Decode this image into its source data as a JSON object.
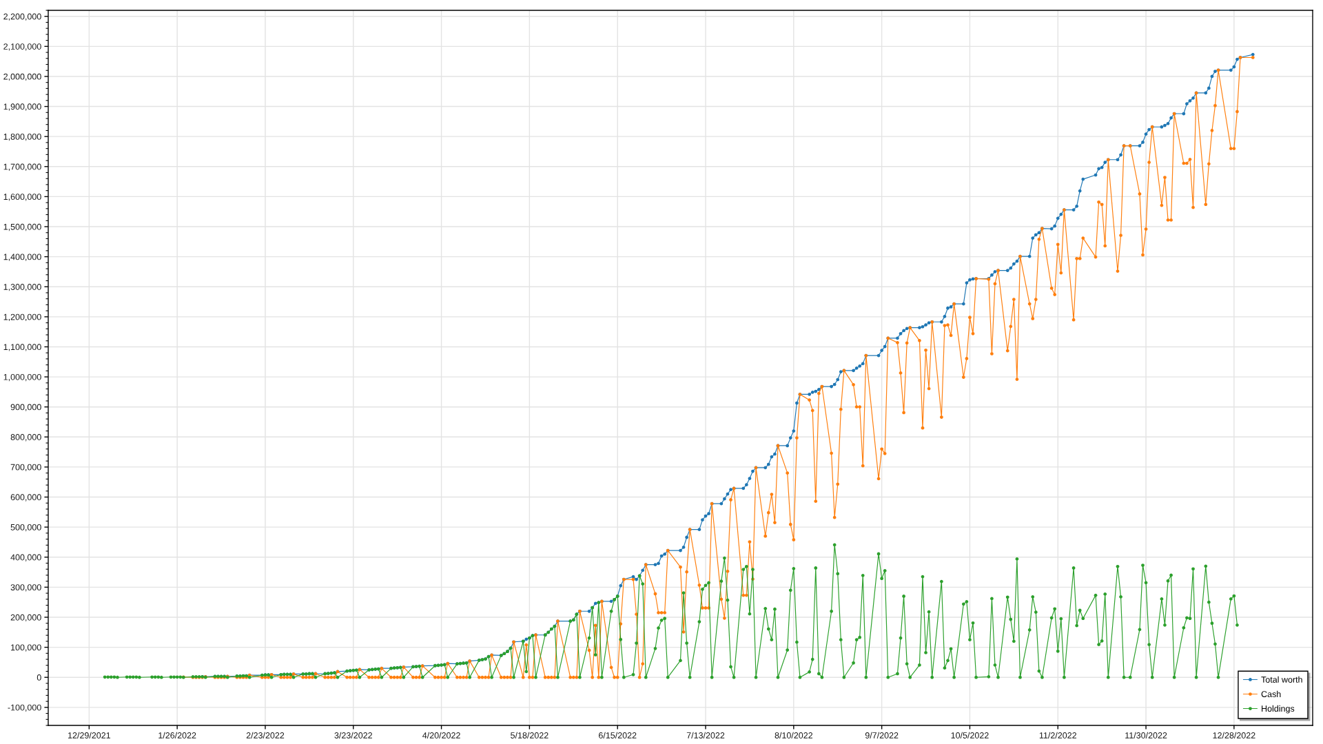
{
  "chart_data": {
    "type": "line",
    "marker": "circle",
    "line_style": "solid",
    "grid": true,
    "legend": "bottom right",
    "xlim": [
      "2021-12-16",
      "2023-01-22"
    ],
    "ylim": [
      -160000,
      2220000
    ],
    "xticks": [
      {
        "value": "2021-12-29",
        "label": "12/29/2021"
      },
      {
        "value": "2022-01-26",
        "label": "1/26/2022"
      },
      {
        "value": "2022-02-23",
        "label": "2/23/2022"
      },
      {
        "value": "2022-03-23",
        "label": "3/23/2022"
      },
      {
        "value": "2022-04-20",
        "label": "4/20/2022"
      },
      {
        "value": "2022-05-18",
        "label": "5/18/2022"
      },
      {
        "value": "2022-06-15",
        "label": "6/15/2022"
      },
      {
        "value": "2022-07-13",
        "label": "7/13/2022"
      },
      {
        "value": "2022-08-10",
        "label": "8/10/2022"
      },
      {
        "value": "2022-09-07",
        "label": "9/7/2022"
      },
      {
        "value": "2022-10-05",
        "label": "10/5/2022"
      },
      {
        "value": "2022-11-02",
        "label": "11/2/2022"
      },
      {
        "value": "2022-11-30",
        "label": "11/30/2022"
      },
      {
        "value": "2022-12-28",
        "label": "12/28/2022"
      }
    ],
    "yticks": [
      {
        "value": -100000,
        "label": "-100,000"
      },
      0,
      {
        "value": 100000,
        "label": "100,000"
      },
      {
        "value": 200000,
        "label": "200,000"
      },
      {
        "value": 300000,
        "label": "300,000"
      },
      {
        "value": 400000,
        "label": "400,000"
      },
      {
        "value": 500000,
        "label": "500,000"
      },
      {
        "value": 600000,
        "label": "600,000"
      },
      {
        "value": 700000,
        "label": "700,000"
      },
      {
        "value": 800000,
        "label": "800,000"
      },
      {
        "value": 900000,
        "label": "900,000"
      },
      {
        "value": 1000000,
        "label": "1,000,000"
      },
      {
        "value": 1100000,
        "label": "1,100,000"
      },
      {
        "value": 1200000,
        "label": "1,200,000"
      },
      {
        "value": 1300000,
        "label": "1,300,000"
      },
      {
        "value": 1400000,
        "label": "1,400,000"
      },
      {
        "value": 1500000,
        "label": "1,500,000"
      },
      {
        "value": 1600000,
        "label": "1,600,000"
      },
      {
        "value": 1700000,
        "label": "1,700,000"
      },
      {
        "value": 1800000,
        "label": "1,800,000"
      },
      {
        "value": 1900000,
        "label": "1,900,000"
      },
      {
        "value": 2000000,
        "label": "2,000,000"
      },
      {
        "value": 2100000,
        "label": "2,100,000"
      },
      {
        "value": 2200000,
        "label": "2,200,000"
      }
    ],
    "x": [
      "2022-01-03",
      "2022-01-04",
      "2022-01-05",
      "2022-01-06",
      "2022-01-07",
      "2022-01-10",
      "2022-01-11",
      "2022-01-12",
      "2022-01-13",
      "2022-01-14",
      "2022-01-18",
      "2022-01-19",
      "2022-01-20",
      "2022-01-21",
      "2022-01-24",
      "2022-01-25",
      "2022-01-26",
      "2022-01-27",
      "2022-01-28",
      "2022-01-31",
      "2022-02-01",
      "2022-02-02",
      "2022-02-03",
      "2022-02-04",
      "2022-02-07",
      "2022-02-08",
      "2022-02-09",
      "2022-02-10",
      "2022-02-11",
      "2022-02-14",
      "2022-02-15",
      "2022-02-16",
      "2022-02-17",
      "2022-02-18",
      "2022-02-22",
      "2022-02-23",
      "2022-02-24",
      "2022-02-25",
      "2022-02-28",
      "2022-03-01",
      "2022-03-02",
      "2022-03-03",
      "2022-03-04",
      "2022-03-07",
      "2022-03-08",
      "2022-03-09",
      "2022-03-10",
      "2022-03-11",
      "2022-03-14",
      "2022-03-15",
      "2022-03-16",
      "2022-03-17",
      "2022-03-18",
      "2022-03-21",
      "2022-03-22",
      "2022-03-23",
      "2022-03-24",
      "2022-03-25",
      "2022-03-28",
      "2022-03-29",
      "2022-03-30",
      "2022-03-31",
      "2022-04-01",
      "2022-04-04",
      "2022-04-05",
      "2022-04-06",
      "2022-04-07",
      "2022-04-08",
      "2022-04-11",
      "2022-04-12",
      "2022-04-13",
      "2022-04-14",
      "2022-04-18",
      "2022-04-19",
      "2022-04-20",
      "2022-04-21",
      "2022-04-22",
      "2022-04-25",
      "2022-04-26",
      "2022-04-27",
      "2022-04-28",
      "2022-04-29",
      "2022-05-02",
      "2022-05-03",
      "2022-05-04",
      "2022-05-05",
      "2022-05-06",
      "2022-05-09",
      "2022-05-10",
      "2022-05-11",
      "2022-05-12",
      "2022-05-13",
      "2022-05-16",
      "2022-05-17",
      "2022-05-18",
      "2022-05-19",
      "2022-05-20",
      "2022-05-23",
      "2022-05-24",
      "2022-05-25",
      "2022-05-26",
      "2022-05-27",
      "2022-05-31",
      "2022-06-01",
      "2022-06-02",
      "2022-06-03",
      "2022-06-06",
      "2022-06-07",
      "2022-06-08",
      "2022-06-09",
      "2022-06-10",
      "2022-06-13",
      "2022-06-14",
      "2022-06-15",
      "2022-06-16",
      "2022-06-17",
      "2022-06-20",
      "2022-06-21",
      "2022-06-22",
      "2022-06-23",
      "2022-06-24",
      "2022-06-27",
      "2022-06-28",
      "2022-06-29",
      "2022-06-30",
      "2022-07-01",
      "2022-07-05",
      "2022-07-06",
      "2022-07-07",
      "2022-07-08",
      "2022-07-11",
      "2022-07-12",
      "2022-07-13",
      "2022-07-14",
      "2022-07-15",
      "2022-07-18",
      "2022-07-19",
      "2022-07-20",
      "2022-07-21",
      "2022-07-22",
      "2022-07-25",
      "2022-07-26",
      "2022-07-27",
      "2022-07-28",
      "2022-07-29",
      "2022-08-01",
      "2022-08-02",
      "2022-08-03",
      "2022-08-04",
      "2022-08-05",
      "2022-08-08",
      "2022-08-09",
      "2022-08-10",
      "2022-08-11",
      "2022-08-12",
      "2022-08-15",
      "2022-08-16",
      "2022-08-17",
      "2022-08-18",
      "2022-08-19",
      "2022-08-22",
      "2022-08-23",
      "2022-08-24",
      "2022-08-25",
      "2022-08-26",
      "2022-08-29",
      "2022-08-30",
      "2022-08-31",
      "2022-09-01",
      "2022-09-02",
      "2022-09-06",
      "2022-09-07",
      "2022-09-08",
      "2022-09-09",
      "2022-09-12",
      "2022-09-13",
      "2022-09-14",
      "2022-09-15",
      "2022-09-16",
      "2022-09-19",
      "2022-09-20",
      "2022-09-21",
      "2022-09-22",
      "2022-09-23",
      "2022-09-26",
      "2022-09-27",
      "2022-09-28",
      "2022-09-29",
      "2022-09-30",
      "2022-10-03",
      "2022-10-04",
      "2022-10-05",
      "2022-10-06",
      "2022-10-07",
      "2022-10-11",
      "2022-10-12",
      "2022-10-13",
      "2022-10-14",
      "2022-10-17",
      "2022-10-18",
      "2022-10-19",
      "2022-10-20",
      "2022-10-21",
      "2022-10-24",
      "2022-10-25",
      "2022-10-26",
      "2022-10-27",
      "2022-10-28",
      "2022-10-31",
      "2022-11-01",
      "2022-11-02",
      "2022-11-03",
      "2022-11-04",
      "2022-11-07",
      "2022-11-08",
      "2022-11-09",
      "2022-11-10",
      "2022-11-14",
      "2022-11-15",
      "2022-11-16",
      "2022-11-17",
      "2022-11-18",
      "2022-11-21",
      "2022-11-22",
      "2022-11-23",
      "2022-11-25",
      "2022-11-28",
      "2022-11-29",
      "2022-11-30",
      "2022-12-01",
      "2022-12-02",
      "2022-12-05",
      "2022-12-06",
      "2022-12-07",
      "2022-12-08",
      "2022-12-09",
      "2022-12-12",
      "2022-12-13",
      "2022-12-14",
      "2022-12-15",
      "2022-12-16",
      "2022-12-19",
      "2022-12-20",
      "2022-12-21",
      "2022-12-22",
      "2022-12-23",
      "2022-12-27",
      "2022-12-28",
      "2022-12-29",
      "2022-12-30",
      "2023-01-03"
    ],
    "series": [
      {
        "name": "Total worth",
        "color": "#1f77b4",
        "values": [
          null,
          null,
          null,
          null,
          null,
          null,
          null,
          null,
          null,
          null,
          null,
          null,
          null,
          null,
          null,
          null,
          null,
          null,
          null,
          null,
          null,
          null,
          2000,
          2000,
          3000,
          3000,
          3000,
          3000,
          3000,
          4000,
          4000,
          5000,
          5000,
          7000,
          7000,
          8000,
          8000,
          9000,
          9000,
          10000,
          10000,
          10000,
          11000,
          11000,
          11000,
          12000,
          12000,
          12000,
          12000,
          13000,
          14000,
          15000,
          19000,
          21000,
          22000,
          23000,
          24000,
          26000,
          25000,
          26000,
          27000,
          28000,
          30000,
          30000,
          31000,
          32000,
          33000,
          34000,
          35000,
          36000,
          37000,
          38000,
          39000,
          40000,
          41000,
          42000,
          46000,
          45000,
          46000,
          47000,
          48000,
          54000,
          57000,
          59000,
          61000,
          69000,
          74000,
          73000,
          79000,
          86000,
          97000,
          118000,
          120000,
          127000,
          131000,
          139000,
          141000,
          141000,
          150000,
          161000,
          170000,
          187000,
          187000,
          191000,
          210000,
          220000,
          220000,
          232000,
          246000,
          249000,
          253000,
          253000,
          259000,
          270000,
          305000,
          326000,
          335000,
          326000,
          338000,
          356000,
          375000,
          375000,
          379000,
          404000,
          410000,
          422000,
          422000,
          433000,
          466000,
          492000,
          492000,
          524000,
          537000,
          545000,
          578000,
          578000,
          594000,
          610000,
          625000,
          629000,
          629000,
          641000,
          662000,
          686000,
          698000,
          698000,
          709000,
          734000,
          743000,
          771000,
          771000,
          797000,
          820000,
          913000,
          942000,
          942000,
          949000,
          952000,
          958000,
          968000,
          968000,
          975000,
          991000,
          1017000,
          1021000,
          1021000,
          1029000,
          1036000,
          1044000,
          1071000,
          1071000,
          1088000,
          1101000,
          1129000,
          1129000,
          1144000,
          1154000,
          1161000,
          1164000,
          1164000,
          1167000,
          1173000,
          1180000,
          1183000,
          1183000,
          1201000,
          1229000,
          1233000,
          1243000,
          1243000,
          1313000,
          1323000,
          1326000,
          1327000,
          1327000,
          1339000,
          1350000,
          1354000,
          1354000,
          1362000,
          1376000,
          1385000,
          1401000,
          1401000,
          1462000,
          1473000,
          1480000,
          1494000,
          1493000,
          1502000,
          1528000,
          1541000,
          1556000,
          1556000,
          1568000,
          1619000,
          1658000,
          1672000,
          1693000,
          1697000,
          1714000,
          1723000,
          1723000,
          1739000,
          1769000,
          1769000,
          1769000,
          1781000,
          1808000,
          1823000,
          1832000,
          1832000,
          1837000,
          1843000,
          1862000,
          1876000,
          1876000,
          1909000,
          1919000,
          1928000,
          1945000,
          1945000,
          1961000,
          2000000,
          2017000,
          2021000,
          2021000,
          2032000,
          2057000,
          2063000,
          2073000
        ]
      },
      {
        "name": "Cash",
        "color": "#ff7f0e",
        "values": [
          null,
          null,
          null,
          null,
          null,
          null,
          null,
          null,
          null,
          null,
          null,
          null,
          null,
          null,
          null,
          null,
          null,
          null,
          1000,
          0,
          0,
          0,
          0,
          2000,
          0,
          0,
          0,
          0,
          3000,
          0,
          0,
          0,
          0,
          7000,
          0,
          0,
          0,
          9000,
          0,
          0,
          0,
          0,
          11000,
          0,
          0,
          0,
          0,
          12000,
          0,
          0,
          0,
          0,
          19000,
          0,
          0,
          0,
          0,
          26000,
          0,
          0,
          0,
          0,
          30000,
          0,
          0,
          0,
          0,
          34000,
          0,
          0,
          0,
          38000,
          0,
          0,
          0,
          0,
          46000,
          0,
          0,
          0,
          0,
          54000,
          0,
          0,
          0,
          0,
          74000,
          0,
          0,
          0,
          0,
          118000,
          0,
          108000,
          0,
          0,
          141000,
          0,
          0,
          0,
          0,
          187000,
          0,
          0,
          0,
          220000,
          90000,
          0,
          173000,
          0,
          253000,
          33000,
          0,
          0,
          178000,
          326000,
          326000,
          210000,
          0,
          45000,
          375000,
          278000,
          215000,
          215000,
          215000,
          422000,
          367000,
          151000,
          351000,
          492000,
          307000,
          231000,
          231000,
          231000,
          578000,
          260000,
          197000,
          353000,
          591000,
          629000,
          273000,
          273000,
          451000,
          327000,
          698000,
          470000,
          548000,
          609000,
          515000,
          771000,
          680000,
          509000,
          458000,
          797000,
          942000,
          923000,
          888000,
          586000,
          945000,
          968000,
          746000,
          532000,
          643000,
          892000,
          1021000,
          974000,
          900000,
          900000,
          704000,
          1071000,
          661000,
          760000,
          745000,
          1129000,
          1114000,
          1013000,
          881000,
          1113000,
          1164000,
          1121000,
          830000,
          1089000,
          961000,
          1183000,
          866000,
          1171000,
          1173000,
          1138000,
          1243000,
          999000,
          1061000,
          1198000,
          1144000,
          1327000,
          1325000,
          1077000,
          1310000,
          1354000,
          1087000,
          1168000,
          1258000,
          992000,
          1401000,
          1243000,
          1194000,
          1258000,
          1458000,
          1494000,
          1295000,
          1274000,
          1441000,
          1346000,
          1556000,
          1190000,
          1394000,
          1394000,
          1462000,
          1399000,
          1582000,
          1574000,
          1436000,
          1723000,
          1352000,
          1471000,
          1769000,
          1769000,
          1609000,
          1406000,
          1492000,
          1714000,
          1832000,
          1571000,
          1664000,
          1522000,
          1522000,
          1876000,
          1711000,
          1711000,
          1724000,
          1564000,
          1945000,
          1574000,
          1709000,
          1820000,
          1903000,
          2021000,
          1760000,
          1760000,
          1883000,
          2063000,
          2063000
        ]
      },
      {
        "name": "Holdings",
        "color": "#2ca02c",
        "values": [
          1000,
          1000,
          1000,
          1000,
          0,
          1000,
          1000,
          1000,
          1000,
          0,
          1000,
          1000,
          1000,
          0,
          1000,
          1000,
          1000,
          1000,
          0,
          2000,
          2000,
          2000,
          2000,
          0,
          3000,
          3000,
          3000,
          3000,
          0,
          4000,
          4000,
          5000,
          5000,
          0,
          7000,
          8000,
          8000,
          0,
          9000,
          10000,
          10000,
          10000,
          0,
          11000,
          11000,
          12000,
          12000,
          0,
          12000,
          13000,
          14000,
          15000,
          0,
          21000,
          22000,
          23000,
          24000,
          0,
          25000,
          26000,
          27000,
          28000,
          0,
          30000,
          31000,
          32000,
          33000,
          0,
          35000,
          36000,
          37000,
          0,
          39000,
          40000,
          41000,
          42000,
          0,
          45000,
          46000,
          47000,
          48000,
          0,
          57000,
          59000,
          61000,
          69000,
          0,
          73000,
          79000,
          86000,
          97000,
          0,
          120000,
          19000,
          131000,
          139000,
          0,
          141000,
          150000,
          161000,
          170000,
          0,
          187000,
          191000,
          210000,
          0,
          131000,
          232000,
          75000,
          249000,
          0,
          220000,
          259000,
          270000,
          126000,
          0,
          9000,
          114000,
          338000,
          311000,
          0,
          96000,
          164000,
          190000,
          196000,
          0,
          56000,
          281000,
          114000,
          0,
          185000,
          293000,
          306000,
          315000,
          0,
          320000,
          397000,
          257000,
          35000,
          0,
          359000,
          369000,
          211000,
          359000,
          0,
          229000,
          161000,
          125000,
          227000,
          0,
          91000,
          290000,
          362000,
          117000,
          0,
          18000,
          60000,
          364000,
          12000,
          0,
          220000,
          441000,
          345000,
          125000,
          0,
          48000,
          125000,
          133000,
          339000,
          0,
          411000,
          329000,
          355000,
          0,
          12000,
          131000,
          270000,
          45000,
          0,
          41000,
          335000,
          82000,
          218000,
          0,
          319000,
          31000,
          56000,
          95000,
          0,
          244000,
          252000,
          125000,
          181000,
          0,
          2000,
          262000,
          41000,
          0,
          267000,
          193000,
          120000,
          394000,
          0,
          158000,
          268000,
          217000,
          21000,
          0,
          198000,
          228000,
          87000,
          195000,
          0,
          364000,
          172000,
          223000,
          196000,
          273000,
          109000,
          121000,
          277000,
          0,
          369000,
          268000,
          0,
          0,
          159000,
          373000,
          315000,
          109000,
          0,
          261000,
          174000,
          321000,
          340000,
          0,
          165000,
          198000,
          196000,
          361000,
          0,
          370000,
          250000,
          180000,
          111000,
          0,
          261000,
          271000,
          174000,
          null,
          null
        ]
      }
    ]
  }
}
